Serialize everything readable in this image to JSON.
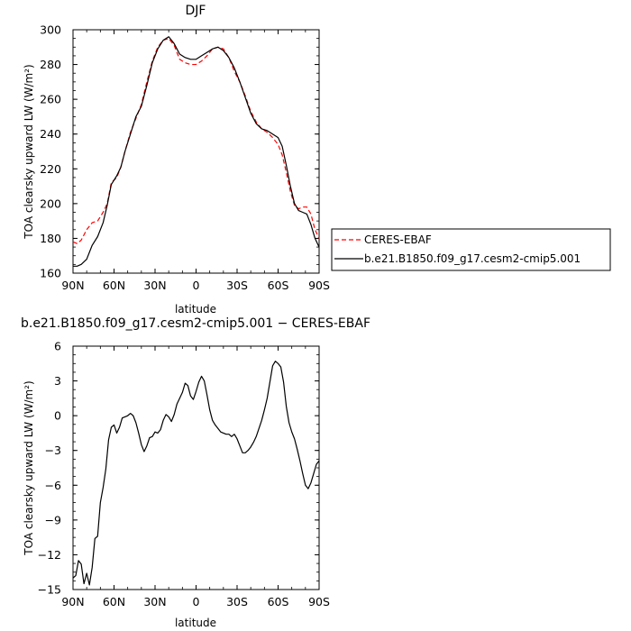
{
  "chart_data": [
    {
      "type": "line",
      "title": "DJF",
      "xlabel": "latitude",
      "ylabel": "TOA clearsky upward LW (W/m²)",
      "xlim": [
        90,
        -90
      ],
      "ylim": [
        160,
        300
      ],
      "xticks": [
        90,
        60,
        30,
        0,
        -30,
        -60,
        -90
      ],
      "xtick_labels": [
        "90N",
        "60N",
        "30N",
        "0",
        "30S",
        "60S",
        "90S"
      ],
      "yticks": [
        160,
        180,
        200,
        220,
        240,
        260,
        280,
        300
      ],
      "ytick_labels": [
        "160",
        "180",
        "200",
        "220",
        "240",
        "260",
        "280",
        "300"
      ],
      "legend_position": "right",
      "series": [
        {
          "name": "CERES-EBAF",
          "color": "#ff0000",
          "dash": "dashed",
          "x": [
            90,
            87,
            84,
            80,
            76,
            72,
            68,
            65,
            62,
            58,
            55,
            52,
            48,
            44,
            40,
            36,
            32,
            28,
            24,
            20,
            16,
            12,
            8,
            4,
            0,
            -4,
            -8,
            -12,
            -16,
            -20,
            -24,
            -28,
            -32,
            -36,
            -40,
            -44,
            -48,
            -52,
            -56,
            -60,
            -63,
            -66,
            -69,
            -72,
            -75,
            -78,
            -81,
            -84,
            -87,
            -90
          ],
          "y": [
            178,
            177,
            179,
            185,
            189,
            190,
            195,
            200,
            212,
            215,
            221,
            230,
            241,
            249,
            257,
            270,
            282,
            290,
            294,
            295,
            291,
            283,
            281,
            280,
            280,
            282,
            285,
            289,
            290,
            289,
            284,
            276,
            270,
            262,
            253,
            247,
            243,
            241,
            238,
            234,
            228,
            218,
            207,
            199,
            197,
            198,
            198,
            194,
            185,
            180
          ]
        },
        {
          "name": "b.e21.B1850.f09_g17.cesm2-cmip5.001",
          "color": "#000000",
          "dash": "solid",
          "x": [
            90,
            87,
            84,
            80,
            76,
            72,
            68,
            65,
            62,
            58,
            55,
            52,
            48,
            44,
            40,
            36,
            32,
            28,
            24,
            20,
            16,
            12,
            8,
            4,
            0,
            -4,
            -8,
            -12,
            -16,
            -20,
            -24,
            -28,
            -32,
            -36,
            -40,
            -44,
            -48,
            -52,
            -56,
            -60,
            -63,
            -66,
            -69,
            -72,
            -75,
            -78,
            -81,
            -84,
            -87,
            -90
          ],
          "y": [
            164,
            164,
            165,
            168,
            176,
            181,
            189,
            199,
            211,
            216,
            221,
            230,
            240,
            250,
            256,
            268,
            281,
            289,
            294,
            296,
            292,
            286,
            284,
            283,
            283,
            285,
            287,
            289,
            290,
            288,
            284,
            278,
            270,
            261,
            252,
            246,
            243,
            242,
            240,
            238,
            233,
            222,
            210,
            200,
            196,
            195,
            194,
            188,
            180,
            175
          ]
        }
      ]
    },
    {
      "type": "line",
      "title": "b.e21.B1850.f09_g17.cesm2-cmip5.001 − CERES-EBAF",
      "xlabel": "latitude",
      "ylabel": "TOA clearsky upward LW (W/m²)",
      "xlim": [
        90,
        -90
      ],
      "ylim": [
        -15,
        6
      ],
      "xticks": [
        90,
        60,
        30,
        0,
        -30,
        -60,
        -90
      ],
      "xtick_labels": [
        "90N",
        "60N",
        "30N",
        "0",
        "30S",
        "60S",
        "90S"
      ],
      "yticks": [
        -15,
        -12,
        -9,
        -6,
        -3,
        0,
        3,
        6
      ],
      "ytick_labels": [
        "−15",
        "−12",
        "−9",
        "−6",
        "−3",
        "0",
        "3",
        "6"
      ],
      "series": [
        {
          "color": "#000000",
          "dash": "solid",
          "x": [
            90,
            88,
            86,
            84,
            82,
            80,
            78,
            76,
            74,
            72,
            70,
            68,
            66,
            64,
            62,
            60,
            58,
            56,
            54,
            52,
            50,
            48,
            46,
            44,
            42,
            40,
            38,
            36,
            34,
            32,
            30,
            28,
            26,
            24,
            22,
            20,
            18,
            16,
            14,
            12,
            10,
            8,
            6,
            4,
            2,
            0,
            -2,
            -4,
            -6,
            -8,
            -10,
            -12,
            -14,
            -16,
            -18,
            -20,
            -22,
            -24,
            -26,
            -28,
            -30,
            -32,
            -34,
            -36,
            -38,
            -40,
            -42,
            -44,
            -46,
            -48,
            -50,
            -52,
            -54,
            -56,
            -58,
            -60,
            -62,
            -64,
            -66,
            -68,
            -70,
            -72,
            -74,
            -76,
            -78,
            -80,
            -82,
            -84,
            -86,
            -88,
            -90
          ],
          "y": [
            -14.0,
            -13.8,
            -12.5,
            -12.8,
            -14.5,
            -13.6,
            -14.6,
            -13.1,
            -10.6,
            -10.4,
            -7.5,
            -6.2,
            -4.6,
            -2.1,
            -1.0,
            -0.8,
            -1.5,
            -1.0,
            -0.2,
            -0.1,
            0.0,
            0.2,
            0.0,
            -0.6,
            -1.5,
            -2.5,
            -3.1,
            -2.6,
            -1.9,
            -1.8,
            -1.4,
            -1.5,
            -1.2,
            -0.4,
            0.1,
            -0.1,
            -0.5,
            0.1,
            1.0,
            1.5,
            2.0,
            2.8,
            2.6,
            1.7,
            1.4,
            2.1,
            2.9,
            3.4,
            3.0,
            1.8,
            0.5,
            -0.4,
            -0.8,
            -1.1,
            -1.4,
            -1.5,
            -1.6,
            -1.6,
            -1.8,
            -1.6,
            -2.0,
            -2.6,
            -3.2,
            -3.2,
            -3.0,
            -2.7,
            -2.3,
            -1.8,
            -1.1,
            -0.4,
            0.5,
            1.5,
            2.9,
            4.3,
            4.7,
            4.5,
            4.2,
            2.9,
            0.8,
            -0.6,
            -1.4,
            -2.0,
            -2.9,
            -3.9,
            -5.0,
            -6.0,
            -6.3,
            -5.8,
            -5.0,
            -4.2,
            -3.9
          ]
        }
      ]
    }
  ]
}
